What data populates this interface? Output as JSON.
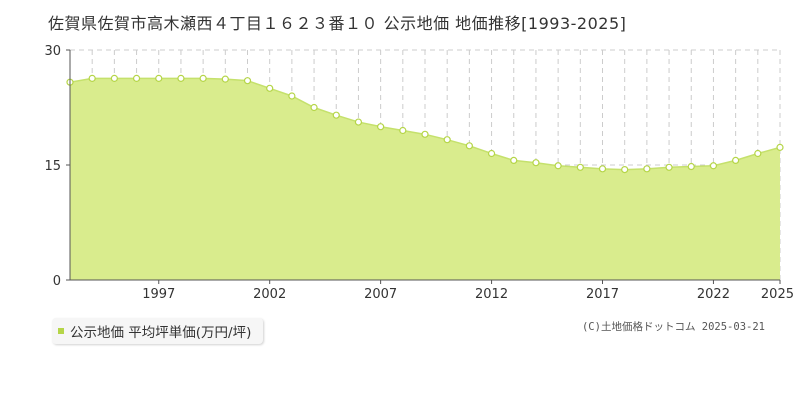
{
  "title": "佐賀県佐賀市高木瀬西４丁目１６２３番１０ 公示地価 地価推移[1993-2025]",
  "credit": "(C)土地価格ドットコム 2025-03-21",
  "legend": {
    "label": "公示地価 平均坪単価(万円/坪)",
    "swatch_color": "#b5d548"
  },
  "colors": {
    "fill": "#d9ec8d",
    "line": "#c5e16c",
    "point_fill": "#ffffff",
    "point_stroke": "#b5d548",
    "grid": "#cccccc",
    "axis": "#555555"
  },
  "chart_data": {
    "type": "area",
    "title": "佐賀県佐賀市高木瀬西４丁目１６２３番１０ 公示地価 地価推移[1993-2025]",
    "xlabel": "",
    "ylabel": "",
    "ylim": [
      0,
      30
    ],
    "yticks": [
      0,
      15,
      30
    ],
    "xlim": [
      1993,
      2025
    ],
    "xticks": [
      1997,
      2002,
      2007,
      2012,
      2017,
      2022,
      2025
    ],
    "grid": true,
    "legend": "bottom-left",
    "series": [
      {
        "name": "公示地価 平均坪単価(万円/坪)",
        "x": [
          1993,
          1994,
          1995,
          1996,
          1997,
          1998,
          1999,
          2000,
          2001,
          2002,
          2003,
          2004,
          2005,
          2006,
          2007,
          2008,
          2009,
          2010,
          2011,
          2012,
          2013,
          2014,
          2015,
          2016,
          2017,
          2018,
          2019,
          2020,
          2021,
          2022,
          2023,
          2024,
          2025
        ],
        "values": [
          25.8,
          26.3,
          26.3,
          26.3,
          26.3,
          26.3,
          26.3,
          26.2,
          26.0,
          25.0,
          24.0,
          22.5,
          21.5,
          20.6,
          20.0,
          19.5,
          19.0,
          18.3,
          17.5,
          16.5,
          15.6,
          15.3,
          14.9,
          14.7,
          14.5,
          14.4,
          14.5,
          14.7,
          14.8,
          14.9,
          15.6,
          16.5,
          17.3
        ]
      }
    ]
  }
}
